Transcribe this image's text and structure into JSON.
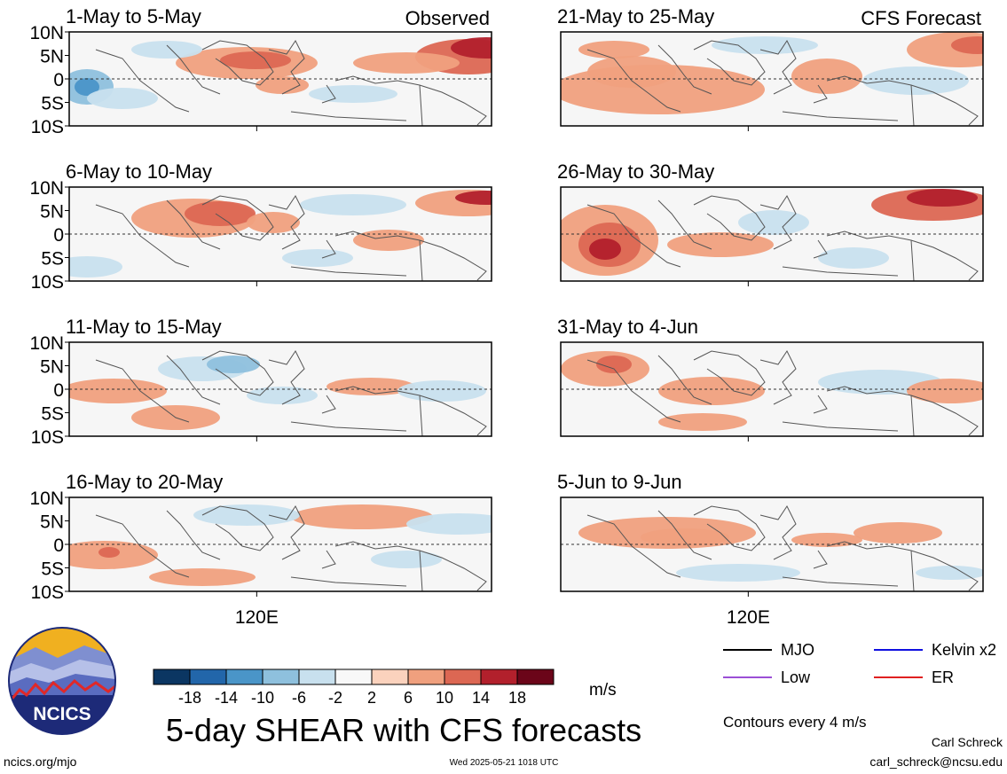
{
  "chart_data": [
    {
      "type": "heatmap",
      "title": "1-May to 5-May",
      "label": "Observed",
      "column": "observed",
      "yticks": [
        "10N",
        "5N",
        "0",
        "5S",
        "10S"
      ],
      "xticks": [
        "120E"
      ],
      "ylim": [
        -10,
        10
      ]
    },
    {
      "type": "heatmap",
      "title": "6-May to 10-May",
      "column": "observed",
      "yticks": [
        "10N",
        "5N",
        "0",
        "5S",
        "10S"
      ],
      "xticks": [
        "120E"
      ],
      "ylim": [
        -10,
        10
      ]
    },
    {
      "type": "heatmap",
      "title": "11-May to 15-May",
      "column": "observed",
      "yticks": [
        "10N",
        "5N",
        "0",
        "5S",
        "10S"
      ],
      "xticks": [
        "120E"
      ],
      "ylim": [
        -10,
        10
      ]
    },
    {
      "type": "heatmap",
      "title": "16-May to 20-May",
      "column": "observed",
      "yticks": [
        "10N",
        "5N",
        "0",
        "5S",
        "10S"
      ],
      "xticks": [
        "120E"
      ],
      "xlabel": "120E",
      "ylim": [
        -10,
        10
      ]
    },
    {
      "type": "heatmap",
      "title": "21-May to 25-May",
      "label": "CFS Forecast",
      "column": "forecast",
      "xticks": [
        "120E"
      ],
      "ylim": [
        -10,
        10
      ]
    },
    {
      "type": "heatmap",
      "title": "26-May to 30-May",
      "column": "forecast",
      "xticks": [
        "120E"
      ],
      "ylim": [
        -10,
        10
      ]
    },
    {
      "type": "heatmap",
      "title": "31-May to 4-Jun",
      "column": "forecast",
      "xticks": [
        "120E"
      ],
      "ylim": [
        -10,
        10
      ]
    },
    {
      "type": "heatmap",
      "title": "5-Jun to 9-Jun",
      "column": "forecast",
      "xticks": [
        "120E"
      ],
      "xlabel": "120E",
      "ylim": [
        -10,
        10
      ]
    }
  ],
  "colorbar": {
    "labels": [
      "-18",
      "-14",
      "-10",
      "-6",
      "-2",
      "2",
      "6",
      "10",
      "14",
      "18"
    ],
    "colors": [
      "#0b3662",
      "#2266aa",
      "#4a95c8",
      "#8ec0dd",
      "#c8e0ee",
      "#f8f8f8",
      "#fbd2bd",
      "#f0a07e",
      "#dc6753",
      "#b2202c",
      "#6b0519"
    ],
    "unit": "m/s"
  },
  "legend": {
    "items": [
      {
        "label": "MJO",
        "color": "#000000"
      },
      {
        "label": "Kelvin x2",
        "color": "#1010e0"
      },
      {
        "label": "Low",
        "color": "#9b4fd6"
      },
      {
        "label": "ER",
        "color": "#e02020"
      }
    ],
    "note": "Contours every 4 m/s"
  },
  "main_title": "5-day SHEAR with CFS forecasts",
  "logo_text": "NCICS",
  "footer": {
    "left": "ncics.org/mjo",
    "center": "Wed 2025-05-21 1018 UTC",
    "author": "Carl Schreck",
    "email": "carl_schreck@ncsu.edu"
  }
}
